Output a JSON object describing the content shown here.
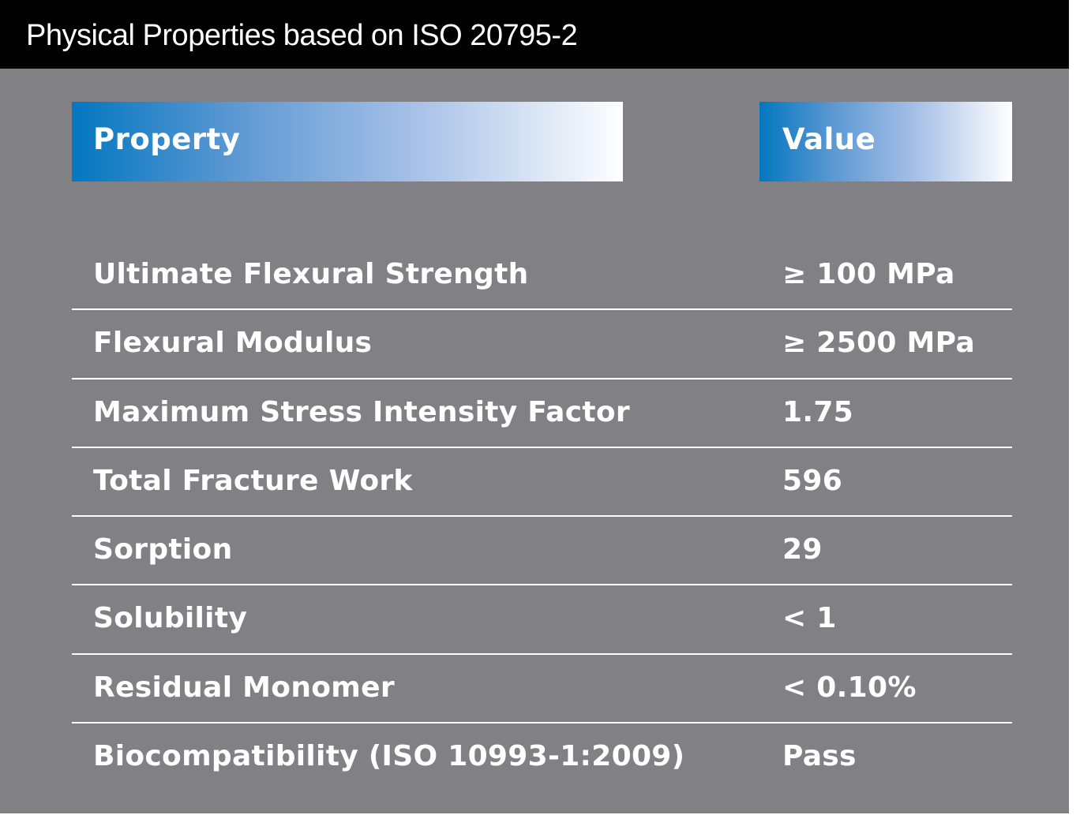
{
  "title": "Physical Properties based on ISO 20795-2",
  "table": {
    "header": {
      "property": "Property",
      "value": "Value"
    },
    "rows": [
      {
        "property": "Ultimate Flexural Strength",
        "value": "≥ 100 MPa"
      },
      {
        "property": "Flexural Modulus",
        "value": "≥ 2500 MPa"
      },
      {
        "property": "Maximum Stress Intensity Factor",
        "value": "1.75"
      },
      {
        "property": "Total Fracture Work",
        "value": "596"
      },
      {
        "property": "Sorption",
        "value": "29"
      },
      {
        "property": "Solubility",
        "value": "< 1"
      },
      {
        "property": "Residual Monomer",
        "value": "< 0.10%"
      },
      {
        "property": "Biocompatibility (ISO 10993-1:2009)",
        "value": "Pass"
      }
    ]
  },
  "colors": {
    "title_bar": "#000000",
    "panel": "#818185",
    "header_gradient_start": "#0377c0",
    "header_gradient_end": "#ffffff",
    "text": "#ffffff"
  }
}
